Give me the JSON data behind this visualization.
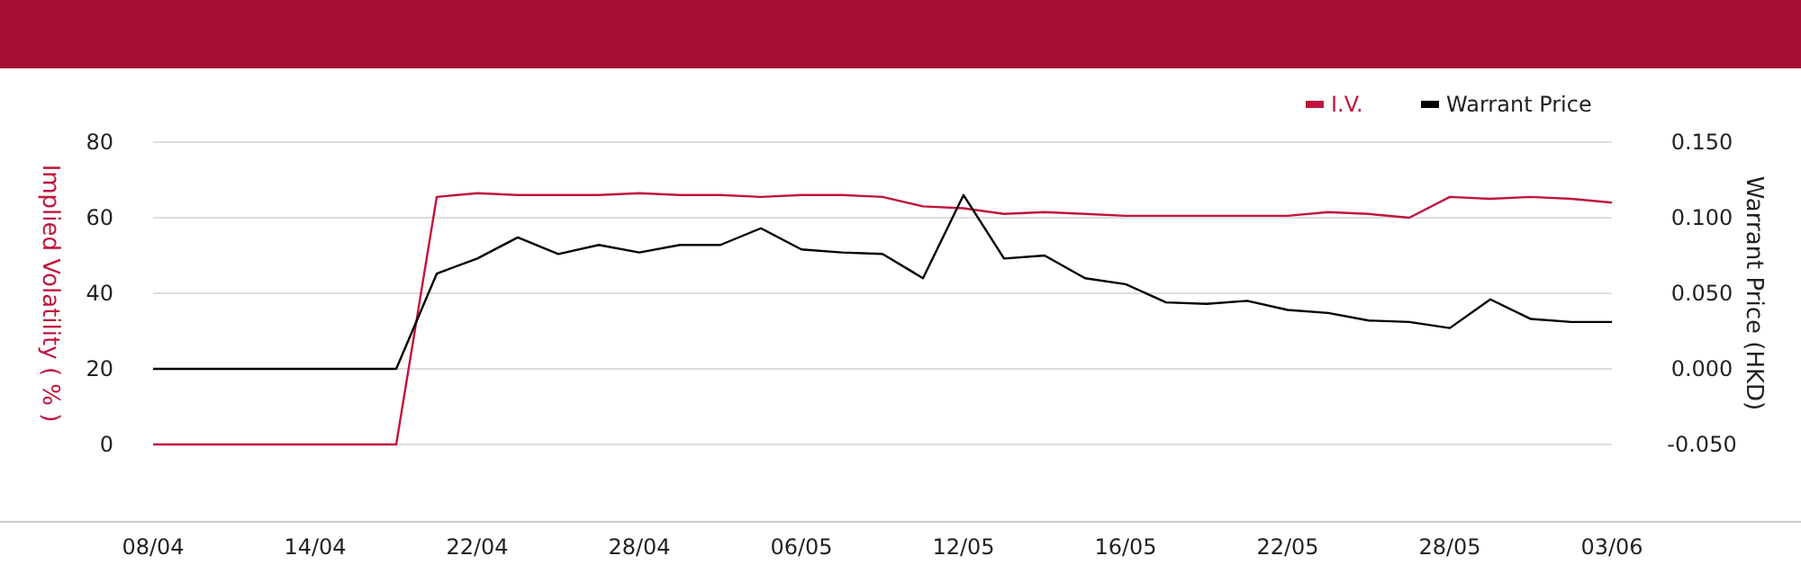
{
  "chart_data": {
    "type": "line",
    "ylabel": "Implied Volatility ( % )",
    "y2label": "Warrant Price (HKD)",
    "categories": [
      "08/04",
      null,
      null,
      null,
      "14/04",
      null,
      null,
      null,
      "22/04",
      null,
      null,
      null,
      "28/04",
      null,
      null,
      null,
      "06/05",
      null,
      null,
      null,
      "12/05",
      null,
      null,
      null,
      "16/05",
      null,
      null,
      null,
      "22/05",
      null,
      null,
      null,
      "28/05",
      null,
      null,
      null,
      "03/06"
    ],
    "series": [
      {
        "name": "I.V.",
        "color": "#c0143c",
        "values": [
          0,
          0,
          0,
          0,
          0,
          0,
          0,
          65.5,
          66.5,
          66,
          66,
          66,
          66.5,
          66,
          66,
          65.5,
          66,
          66,
          65.5,
          63,
          62.5,
          61,
          61.5,
          61,
          60.5,
          60.5,
          60.5,
          60.5,
          60.5,
          61.5,
          61,
          60,
          65.5,
          65,
          65.5,
          65,
          64
        ]
      },
      {
        "name": "Warrant Price",
        "color": "#000000",
        "axis": "y2",
        "values": [
          0,
          0,
          0,
          0,
          0,
          0,
          0,
          0.063,
          0.073,
          0.087,
          0.076,
          0.082,
          0.077,
          0.082,
          0.082,
          0.093,
          0.079,
          0.077,
          0.076,
          0.06,
          0.115,
          0.073,
          0.075,
          0.06,
          0.056,
          0.044,
          0.043,
          0.045,
          0.039,
          0.037,
          0.032,
          0.031,
          0.027,
          0.046,
          0.033,
          0.031,
          0.031
        ]
      }
    ],
    "ylim": [
      -20,
      80
    ],
    "yticks": [
      0,
      20,
      40,
      60,
      80
    ],
    "y2lim": [
      -0.05,
      0.15
    ],
    "y2ticks": [
      {
        "value": -0.05,
        "label": "-0.050"
      },
      {
        "value": 0,
        "label": "0.000"
      },
      {
        "value": 0.05,
        "label": "0.050"
      },
      {
        "value": 0.1,
        "label": "0.100"
      },
      {
        "value": 0.15,
        "label": "0.150"
      }
    ],
    "grid": "y",
    "legend": "top right"
  }
}
